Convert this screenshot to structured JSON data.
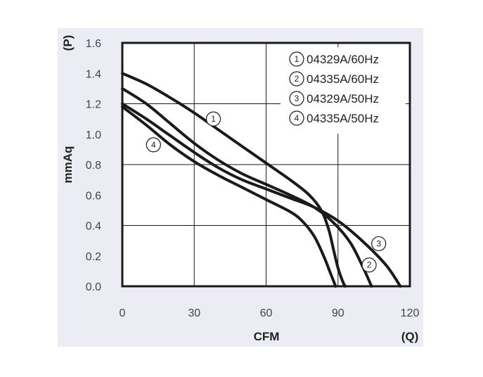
{
  "chart_data": {
    "type": "line",
    "xlabel": "CFM",
    "x_unit": "(Q)",
    "ylabel": "mmAq",
    "y_unit": "(P)",
    "xlim": [
      0,
      120
    ],
    "ylim": [
      0,
      1.6
    ],
    "x_ticks": [
      "0",
      "30",
      "60",
      "90",
      "120"
    ],
    "y_ticks": [
      "0.0",
      "0.2",
      "0.4",
      "0.6",
      "0.8",
      "1.0",
      "1.2",
      "1.4",
      "1.6"
    ],
    "grid": true,
    "legend_position": "top-right",
    "series": [
      {
        "name": "04329A/60Hz",
        "marker": "1",
        "label_at": [
          38,
          1.1
        ],
        "points": [
          [
            0,
            1.4
          ],
          [
            10,
            1.33
          ],
          [
            20,
            1.24
          ],
          [
            30,
            1.14
          ],
          [
            40,
            1.03
          ],
          [
            50,
            0.92
          ],
          [
            60,
            0.81
          ],
          [
            70,
            0.7
          ],
          [
            78,
            0.6
          ],
          [
            83,
            0.5
          ],
          [
            86,
            0.38
          ],
          [
            88,
            0.25
          ],
          [
            90,
            0.12
          ],
          [
            92,
            0.03
          ],
          [
            93,
            0
          ]
        ]
      },
      {
        "name": "04335A/60Hz",
        "marker": "2",
        "label_at": [
          103,
          0.14
        ],
        "points": [
          [
            0,
            1.3
          ],
          [
            10,
            1.2
          ],
          [
            20,
            1.07
          ],
          [
            30,
            0.94
          ],
          [
            40,
            0.83
          ],
          [
            50,
            0.74
          ],
          [
            60,
            0.67
          ],
          [
            70,
            0.6
          ],
          [
            80,
            0.52
          ],
          [
            88,
            0.42
          ],
          [
            95,
            0.29
          ],
          [
            100,
            0.14
          ],
          [
            104,
            0
          ]
        ]
      },
      {
        "name": "04329A/50Hz",
        "marker": "3",
        "label_at": [
          107,
          0.28
        ],
        "points": [
          [
            0,
            1.2
          ],
          [
            10,
            1.1
          ],
          [
            20,
            0.99
          ],
          [
            30,
            0.88
          ],
          [
            40,
            0.78
          ],
          [
            50,
            0.7
          ],
          [
            60,
            0.64
          ],
          [
            70,
            0.58
          ],
          [
            80,
            0.52
          ],
          [
            90,
            0.43
          ],
          [
            100,
            0.3
          ],
          [
            110,
            0.14
          ],
          [
            116,
            0
          ]
        ]
      },
      {
        "name": "04335A/50Hz",
        "marker": "4",
        "label_at": [
          13,
          0.93
        ],
        "points": [
          [
            0,
            1.18
          ],
          [
            10,
            1.06
          ],
          [
            20,
            0.93
          ],
          [
            30,
            0.82
          ],
          [
            40,
            0.73
          ],
          [
            50,
            0.65
          ],
          [
            60,
            0.57
          ],
          [
            70,
            0.49
          ],
          [
            75,
            0.43
          ],
          [
            80,
            0.33
          ],
          [
            84,
            0.2
          ],
          [
            87,
            0.08
          ],
          [
            89,
            0
          ]
        ]
      }
    ]
  }
}
